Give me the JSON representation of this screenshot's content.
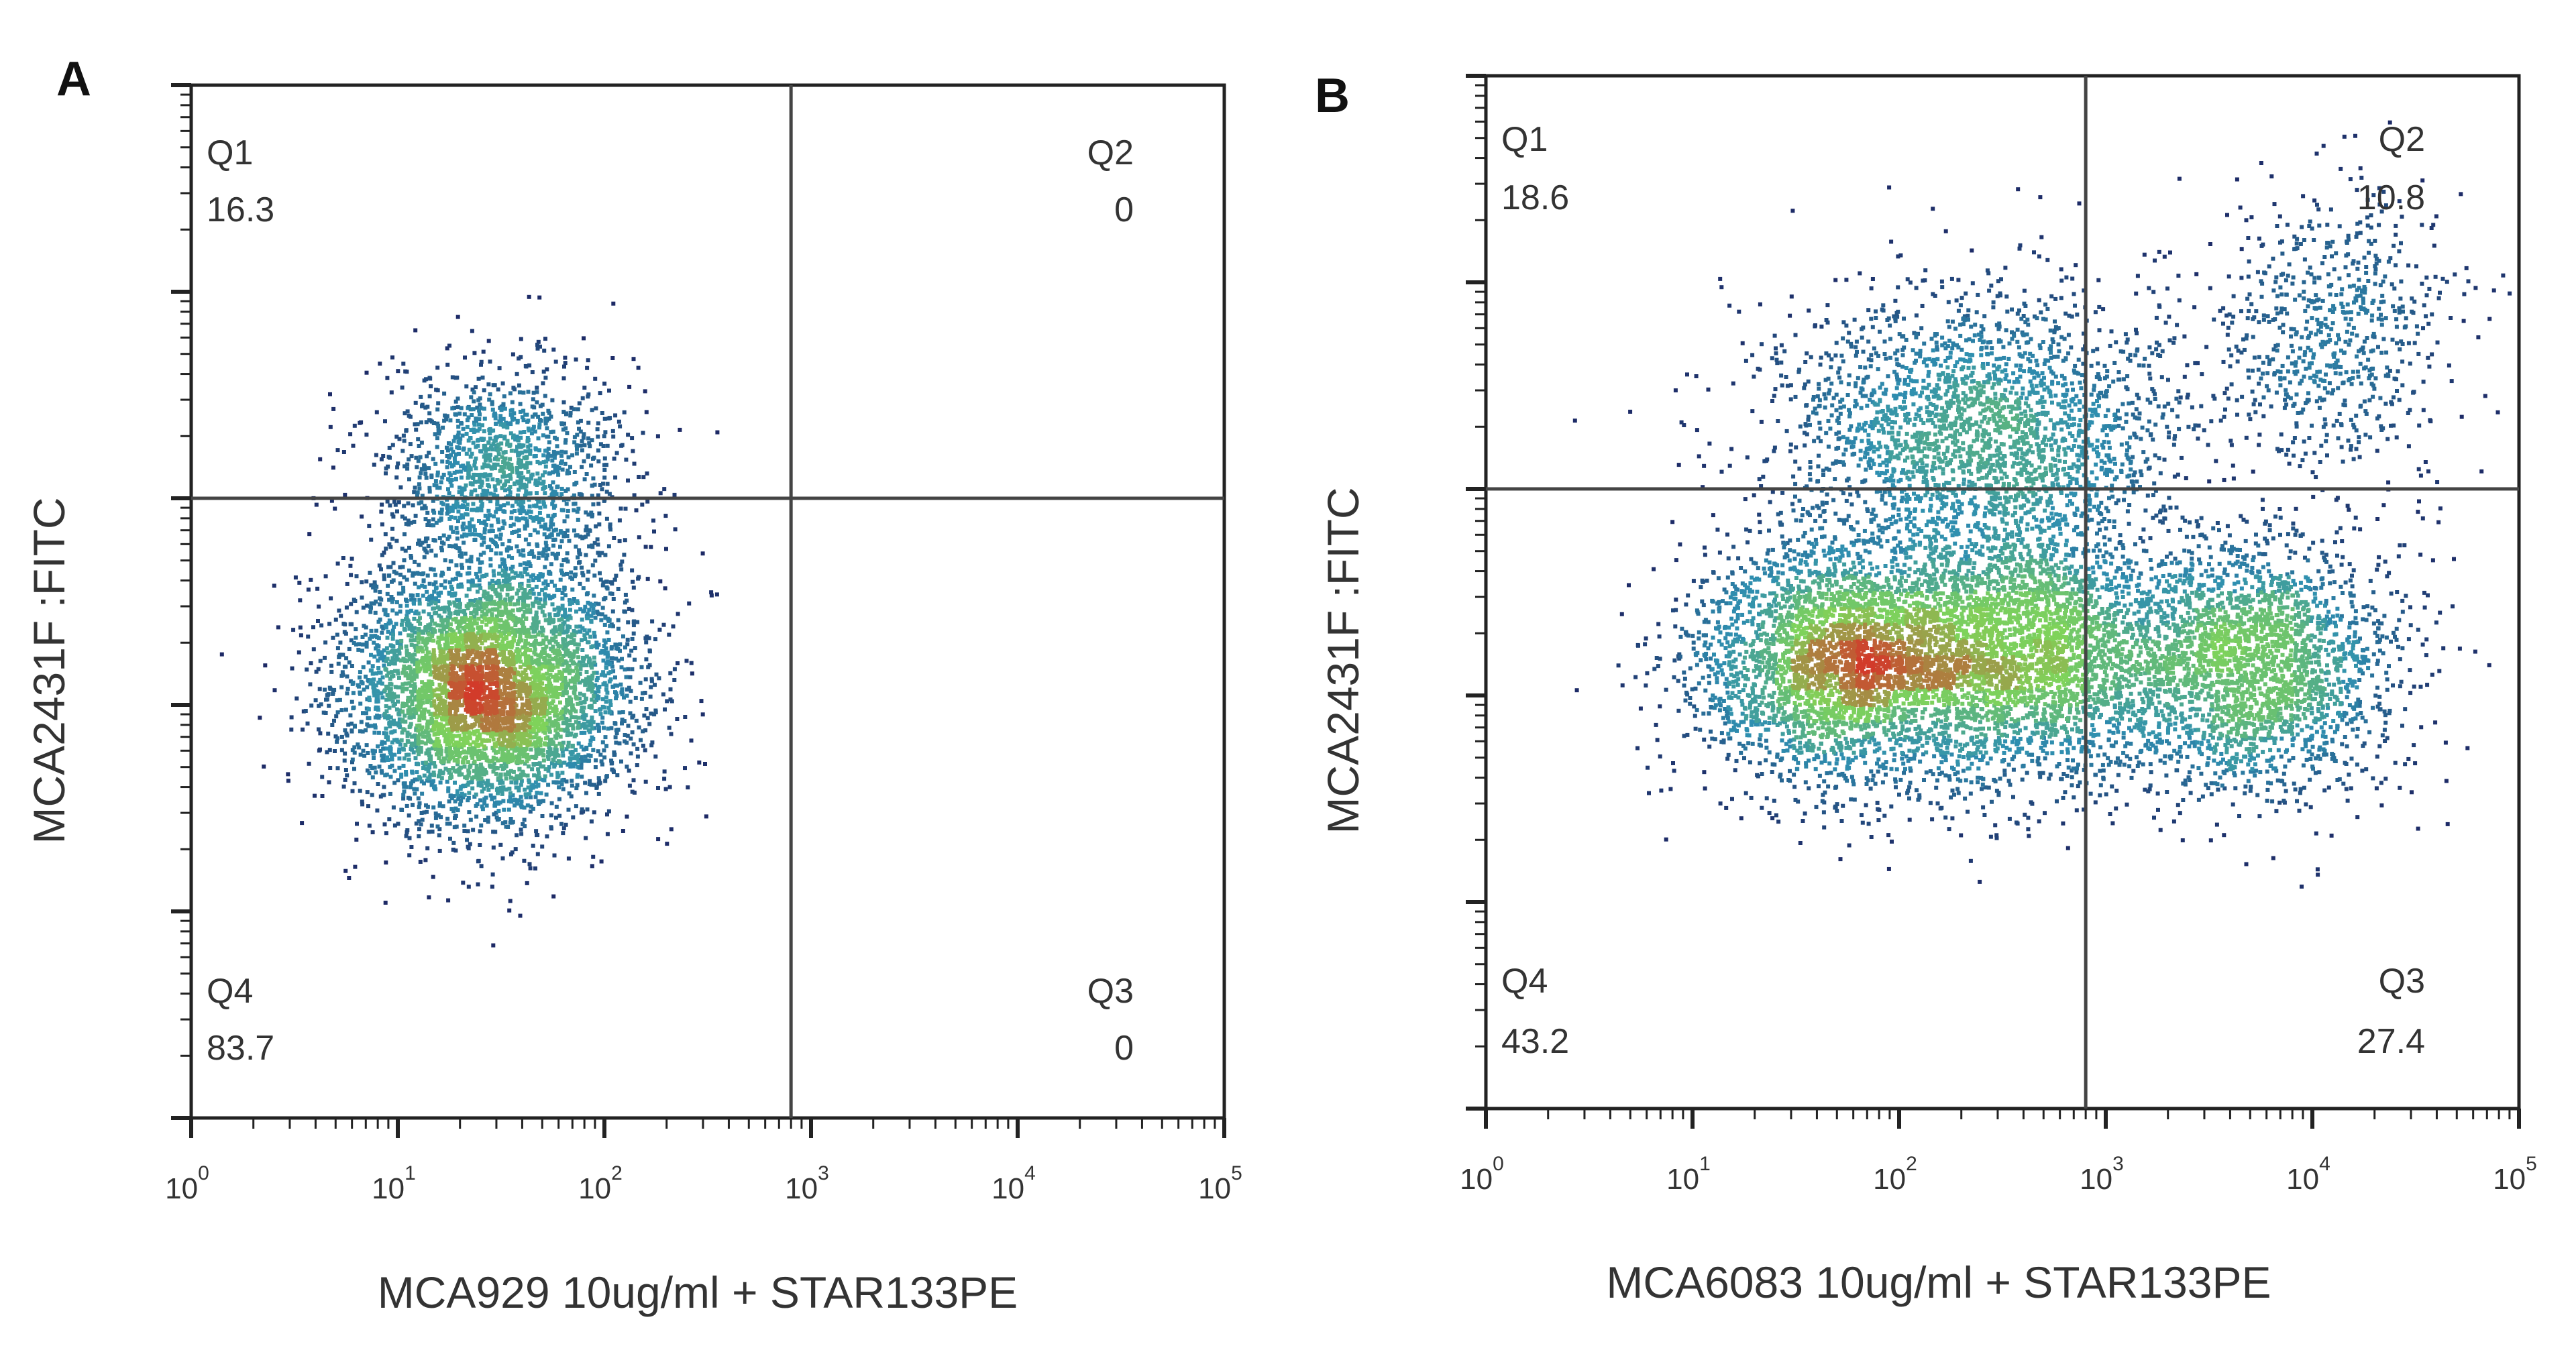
{
  "chart_data": [
    {
      "type": "scatter",
      "panel": "A",
      "xlabel": "MCA929 10ug/ml + STAR133PE",
      "ylabel": "MCA2431F :FITC",
      "x_scale": "log",
      "y_scale": "log",
      "xlim": [
        1,
        100000
      ],
      "ylim": [
        1,
        100000
      ],
      "x_ticks": [
        {
          "base": "10",
          "exp": "0"
        },
        {
          "base": "10",
          "exp": "1"
        },
        {
          "base": "10",
          "exp": "2"
        },
        {
          "base": "10",
          "exp": "3"
        },
        {
          "base": "10",
          "exp": "4"
        },
        {
          "base": "10",
          "exp": "5"
        }
      ],
      "gate": {
        "x": 800,
        "y": 1000
      },
      "quadrants": [
        {
          "name": "Q1",
          "value": "16.3",
          "position": "top-left"
        },
        {
          "name": "Q2",
          "value": "0",
          "position": "top-right"
        },
        {
          "name": "Q3",
          "value": "0",
          "position": "bottom-right"
        },
        {
          "name": "Q4",
          "value": "83.7",
          "position": "bottom-left"
        }
      ],
      "populations": [
        {
          "cx": 28,
          "cy": 120,
          "sx": 0.35,
          "sy": 0.32,
          "n": 5200
        },
        {
          "cx": 32,
          "cy": 1400,
          "sx": 0.3,
          "sy": 0.25,
          "n": 1300
        }
      ]
    },
    {
      "type": "scatter",
      "panel": "B",
      "xlabel": "MCA6083 10ug/ml + STAR133PE",
      "ylabel": "MCA2431F :FITC",
      "x_scale": "log",
      "y_scale": "log",
      "xlim": [
        1,
        100000
      ],
      "ylim": [
        1,
        100000
      ],
      "x_ticks": [
        {
          "base": "10",
          "exp": "0"
        },
        {
          "base": "10",
          "exp": "1"
        },
        {
          "base": "10",
          "exp": "2"
        },
        {
          "base": "10",
          "exp": "3"
        },
        {
          "base": "10",
          "exp": "4"
        },
        {
          "base": "10",
          "exp": "5"
        }
      ],
      "gate": {
        "x": 800,
        "y": 1000
      },
      "quadrants": [
        {
          "name": "Q1",
          "value": "18.6",
          "position": "top-left"
        },
        {
          "name": "Q2",
          "value": "10.8",
          "position": "top-right"
        },
        {
          "name": "Q3",
          "value": "27.4",
          "position": "bottom-right"
        },
        {
          "name": "Q4",
          "value": "43.2",
          "position": "bottom-left"
        }
      ],
      "populations": [
        {
          "cx": 60,
          "cy": 150,
          "sx": 0.38,
          "sy": 0.3,
          "n": 3600
        },
        {
          "cx": 450,
          "cy": 170,
          "sx": 0.35,
          "sy": 0.32,
          "n": 2600
        },
        {
          "cx": 5000,
          "cy": 140,
          "sx": 0.35,
          "sy": 0.3,
          "n": 2500
        },
        {
          "cx": 250,
          "cy": 2000,
          "sx": 0.5,
          "sy": 0.32,
          "n": 2400
        },
        {
          "cx": 12000,
          "cy": 6000,
          "sx": 0.3,
          "sy": 0.35,
          "n": 700
        }
      ]
    }
  ],
  "colors": {
    "low_density": "#1b1f5e",
    "mid_density": "#2f8fb0",
    "high_density": "#7fd35a",
    "peak_density": "#d23b2a",
    "gate_line": "#444444",
    "frame": "#222222"
  }
}
